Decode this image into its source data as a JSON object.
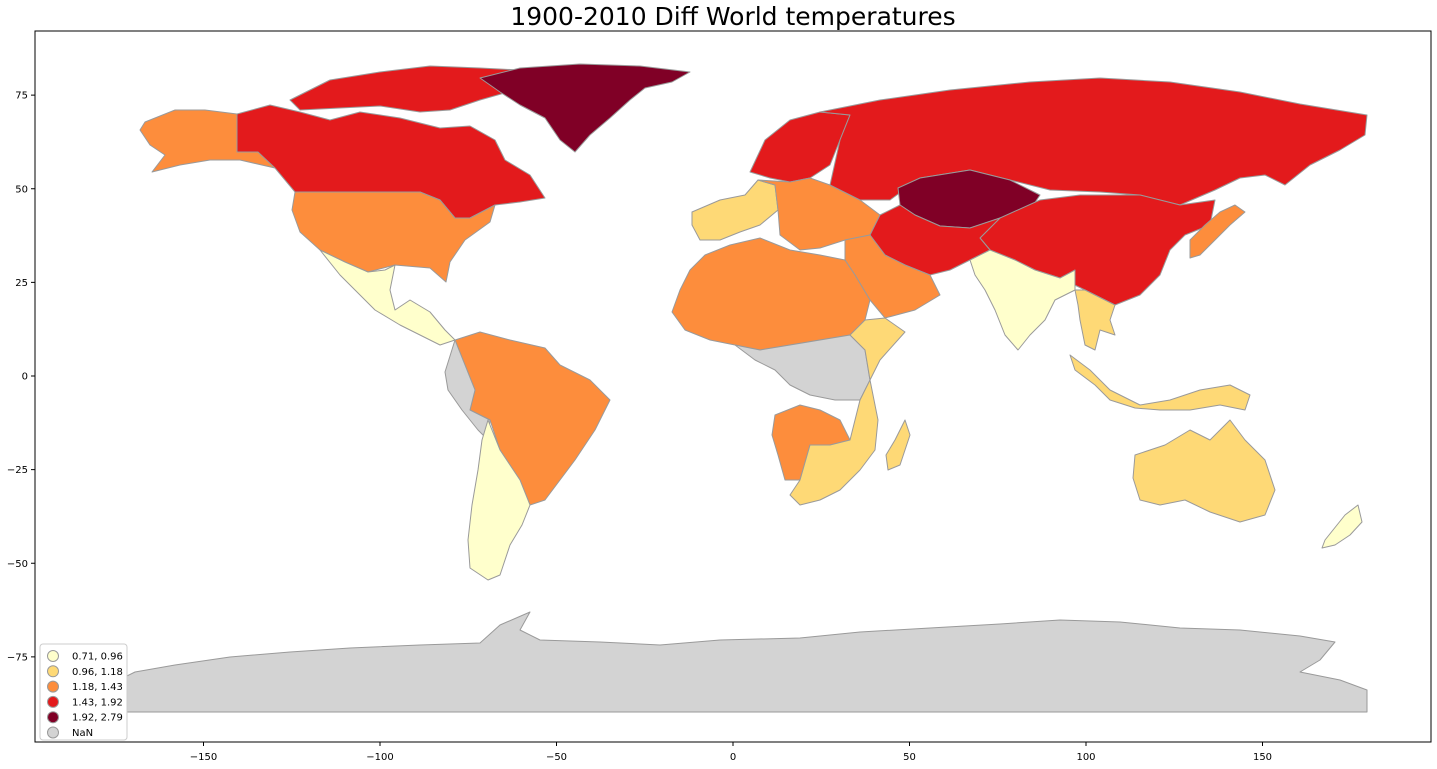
{
  "title": "1900-2010 Diff World temperatures",
  "colors": {
    "c1": "#ffffcc",
    "c2": "#fed976",
    "c3": "#fd8d3c",
    "c4": "#e31a1c",
    "c5": "#800026",
    "nan": "#d3d3d3",
    "edge": "#9a9a9a"
  },
  "x_ticks": [
    {
      "value": -150,
      "label": "−150"
    },
    {
      "value": -100,
      "label": "−100"
    },
    {
      "value": -50,
      "label": "−50"
    },
    {
      "value": 0,
      "label": "0"
    },
    {
      "value": 50,
      "label": "50"
    },
    {
      "value": 100,
      "label": "100"
    },
    {
      "value": 150,
      "label": "150"
    }
  ],
  "y_ticks": [
    {
      "value": 75,
      "label": "75"
    },
    {
      "value": 50,
      "label": "50"
    },
    {
      "value": 25,
      "label": "25"
    },
    {
      "value": 0,
      "label": "0"
    },
    {
      "value": -25,
      "label": "−25"
    },
    {
      "value": -50,
      "label": "−50"
    },
    {
      "value": -75,
      "label": "−75"
    }
  ],
  "legend": {
    "placement": "lower-left",
    "entries": [
      {
        "label": "0.71, 0.96",
        "class": "c1"
      },
      {
        "label": "0.96, 1.18",
        "class": "c2"
      },
      {
        "label": "1.18, 1.43",
        "class": "c3"
      },
      {
        "label": "1.43, 1.92",
        "class": "c4"
      },
      {
        "label": "1.92, 2.79",
        "class": "c5"
      },
      {
        "label": "NaN",
        "class": "nan"
      }
    ]
  },
  "regions": [
    {
      "name": "canada",
      "class": "c4"
    },
    {
      "name": "arctic-islands",
      "class": "c4"
    },
    {
      "name": "alaska",
      "class": "c3"
    },
    {
      "name": "usa",
      "class": "c3"
    },
    {
      "name": "greenland",
      "class": "c5"
    },
    {
      "name": "russia",
      "class": "c4"
    },
    {
      "name": "kazakhstan",
      "class": "c5"
    },
    {
      "name": "china",
      "class": "c4"
    },
    {
      "name": "mexico-central-america",
      "class": "c1"
    },
    {
      "name": "south-america-north",
      "class": "c3"
    },
    {
      "name": "andes-west",
      "class": "nan"
    },
    {
      "name": "south-america-south",
      "class": "c1"
    },
    {
      "name": "europe-west",
      "class": "c2"
    },
    {
      "name": "europe-central",
      "class": "c3"
    },
    {
      "name": "scandinavia",
      "class": "c4"
    },
    {
      "name": "north-africa",
      "class": "c3"
    },
    {
      "name": "central-africa",
      "class": "nan"
    },
    {
      "name": "east-africa",
      "class": "c2"
    },
    {
      "name": "southern-africa",
      "class": "c2"
    },
    {
      "name": "angola-zambia",
      "class": "c3"
    },
    {
      "name": "madagascar",
      "class": "c2"
    },
    {
      "name": "middle-east",
      "class": "c3"
    },
    {
      "name": "iran-central-asia",
      "class": "c4"
    },
    {
      "name": "india",
      "class": "c1"
    },
    {
      "name": "southeast-asia",
      "class": "c2"
    },
    {
      "name": "indonesia",
      "class": "c2"
    },
    {
      "name": "australia",
      "class": "c2"
    },
    {
      "name": "new-zealand",
      "class": "c1"
    },
    {
      "name": "japan",
      "class": "c3"
    },
    {
      "name": "antarctica",
      "class": "nan"
    }
  ]
}
